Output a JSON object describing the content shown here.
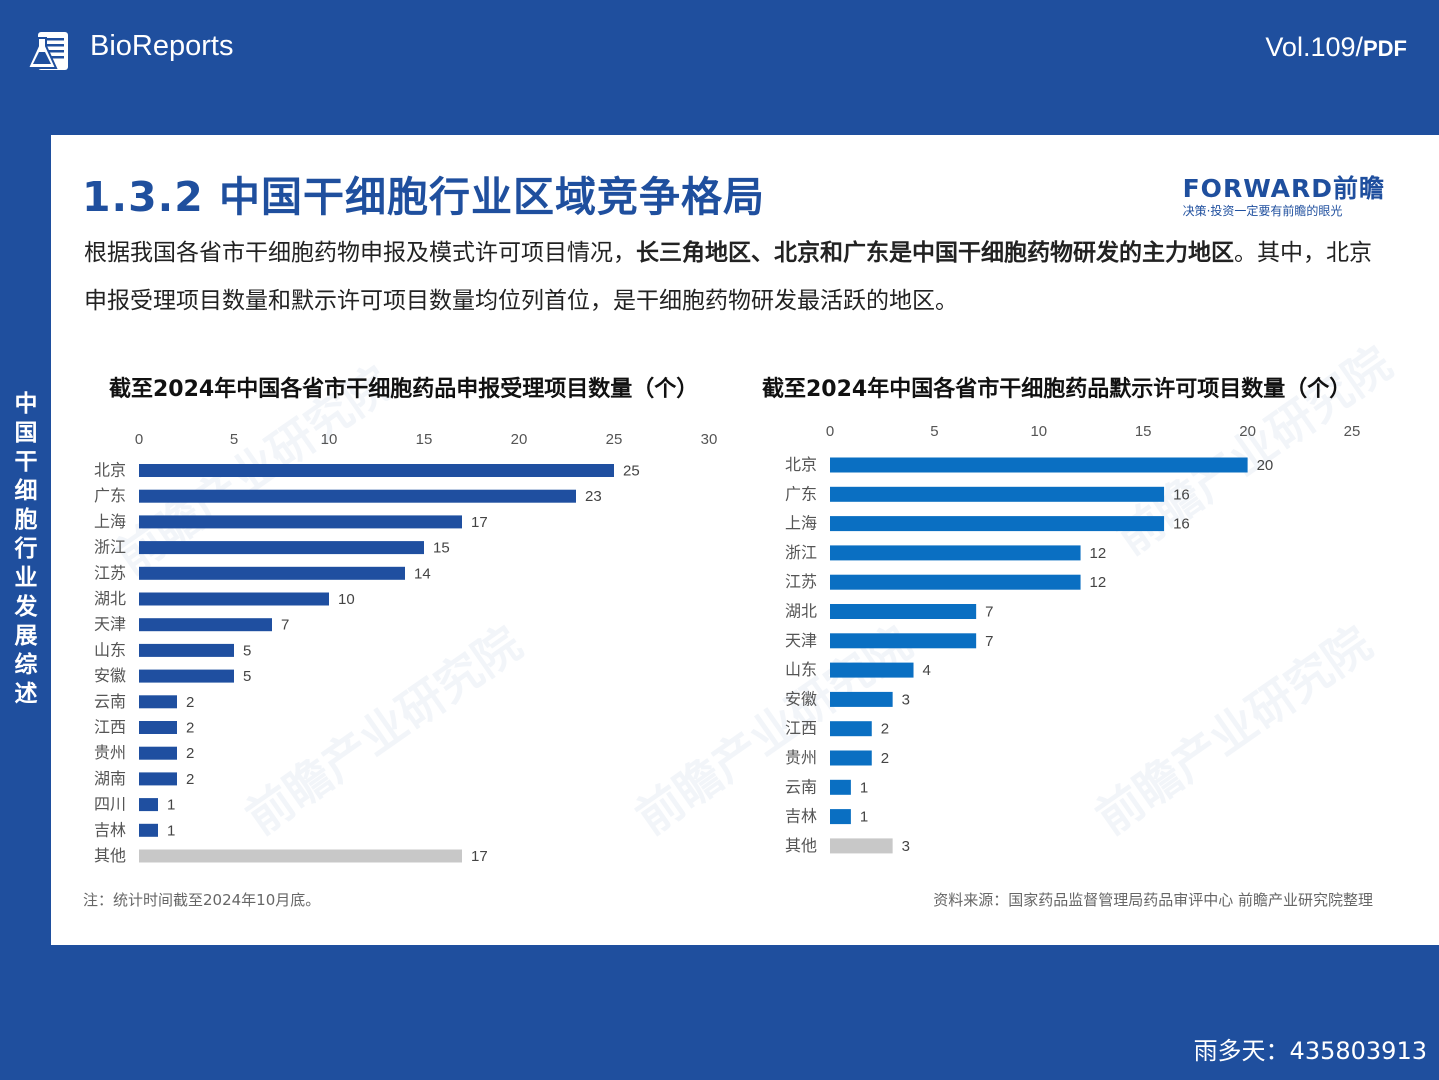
{
  "header": {
    "brand": "BioReports",
    "volume": "Vol.109/",
    "volume_format": "PDF",
    "logo_icon": "flask-document-icon"
  },
  "sidebar": {
    "vertical_title": "中国干细胞行业发展综述"
  },
  "card": {
    "title": "1.3.2 中国干细胞行业区域竞争格局",
    "forward_logo": "FORWARD前瞻",
    "forward_slogan": "决策·投资一定要有前瞻的眼光",
    "intro": {
      "part1": "根据我国各省市干细胞药物申报及模式许可项目情况，",
      "part2_bold": "长三角地区、北京和广东是中国干细胞药物研发的主力地区",
      "part3": "。其中，北京申报受理项目数量和默示许可项目数量均位列首位，是干细胞药物研发最活跃的地区。"
    },
    "watermark": "前瞻产业研究院",
    "note": "注：统计时间截至2024年10月底。",
    "source": "资料来源：国家药品监督管理局药品审评中心 前瞻产业研究院整理"
  },
  "footer": {
    "user": "雨多天：435803913"
  },
  "colors": {
    "background": "#1f4f9e",
    "left_bar": "#1f4fa0",
    "right_bar": "#0a6fc2",
    "other_bar": "#c8c8c8"
  },
  "chart_data": [
    {
      "type": "bar",
      "orientation": "horizontal",
      "title": "截至2024年中国各省市干细胞药品申报受理项目数量（个）",
      "categories": [
        "北京",
        "广东",
        "上海",
        "浙江",
        "江苏",
        "湖北",
        "天津",
        "山东",
        "安徽",
        "云南",
        "江西",
        "贵州",
        "湖南",
        "四川",
        "吉林",
        "其他"
      ],
      "values": [
        25,
        23,
        17,
        15,
        14,
        10,
        7,
        5,
        5,
        2,
        2,
        2,
        2,
        1,
        1,
        17
      ],
      "xlim": [
        0,
        30
      ],
      "ticks": [
        0,
        5,
        10,
        15,
        20,
        25,
        30
      ],
      "axis_position": "top",
      "grid": false
    },
    {
      "type": "bar",
      "orientation": "horizontal",
      "title": "截至2024年中国各省市干细胞药品默示许可项目数量（个）",
      "categories": [
        "北京",
        "广东",
        "上海",
        "浙江",
        "江苏",
        "湖北",
        "天津",
        "山东",
        "安徽",
        "江西",
        "贵州",
        "云南",
        "吉林",
        "其他"
      ],
      "values": [
        20,
        16,
        16,
        12,
        12,
        7,
        7,
        4,
        3,
        2,
        2,
        1,
        1,
        3
      ],
      "xlim": [
        0,
        25
      ],
      "ticks": [
        0,
        5,
        10,
        15,
        20,
        25
      ],
      "axis_position": "top",
      "grid": false
    }
  ]
}
